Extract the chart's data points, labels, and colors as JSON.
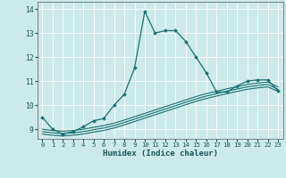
{
  "xlabel": "Humidex (Indice chaleur)",
  "bg_color": "#cceaea",
  "grid_color": "#ffffff",
  "line_color": "#1a7070",
  "xlim": [
    -0.5,
    23.5
  ],
  "ylim": [
    8.6,
    14.3
  ],
  "yticks": [
    9,
    10,
    11,
    12,
    13,
    14
  ],
  "xticks": [
    0,
    1,
    2,
    3,
    4,
    5,
    6,
    7,
    8,
    9,
    10,
    11,
    12,
    13,
    14,
    15,
    16,
    17,
    18,
    19,
    20,
    21,
    22,
    23
  ],
  "main_x": [
    0,
    1,
    2,
    3,
    4,
    5,
    6,
    7,
    8,
    9,
    10,
    11,
    12,
    13,
    14,
    15,
    16,
    17,
    18,
    19,
    20,
    21,
    22,
    23
  ],
  "main_y": [
    9.5,
    9.0,
    8.8,
    8.9,
    9.1,
    9.35,
    9.45,
    10.0,
    10.45,
    11.55,
    13.9,
    13.0,
    13.1,
    13.1,
    12.65,
    12.0,
    11.35,
    10.55,
    10.55,
    10.8,
    11.0,
    11.05,
    11.05,
    10.6
  ],
  "line2_x": [
    0,
    1,
    2,
    3,
    4,
    5,
    6,
    7,
    8,
    9,
    10,
    11,
    12,
    13,
    14,
    15,
    16,
    17,
    18,
    19,
    20,
    21,
    22,
    23
  ],
  "line2_y": [
    8.8,
    8.75,
    8.72,
    8.75,
    8.8,
    8.88,
    8.95,
    9.05,
    9.18,
    9.32,
    9.46,
    9.6,
    9.74,
    9.88,
    10.02,
    10.16,
    10.28,
    10.38,
    10.48,
    10.57,
    10.66,
    10.72,
    10.76,
    10.58
  ],
  "line3_x": [
    0,
    1,
    2,
    3,
    4,
    5,
    6,
    7,
    8,
    9,
    10,
    11,
    12,
    13,
    14,
    15,
    16,
    17,
    18,
    19,
    20,
    21,
    22,
    23
  ],
  "line3_y": [
    8.9,
    8.85,
    8.82,
    8.85,
    8.9,
    8.98,
    9.05,
    9.15,
    9.28,
    9.42,
    9.56,
    9.7,
    9.84,
    9.98,
    10.12,
    10.26,
    10.38,
    10.48,
    10.58,
    10.67,
    10.76,
    10.82,
    10.86,
    10.66
  ],
  "line4_x": [
    0,
    1,
    2,
    3,
    4,
    5,
    6,
    7,
    8,
    9,
    10,
    11,
    12,
    13,
    14,
    15,
    16,
    17,
    18,
    19,
    20,
    21,
    22,
    23
  ],
  "line4_y": [
    9.0,
    8.95,
    8.92,
    8.95,
    9.0,
    9.08,
    9.15,
    9.25,
    9.38,
    9.52,
    9.66,
    9.8,
    9.94,
    10.08,
    10.22,
    10.36,
    10.48,
    10.58,
    10.68,
    10.77,
    10.86,
    10.92,
    10.96,
    10.76
  ]
}
